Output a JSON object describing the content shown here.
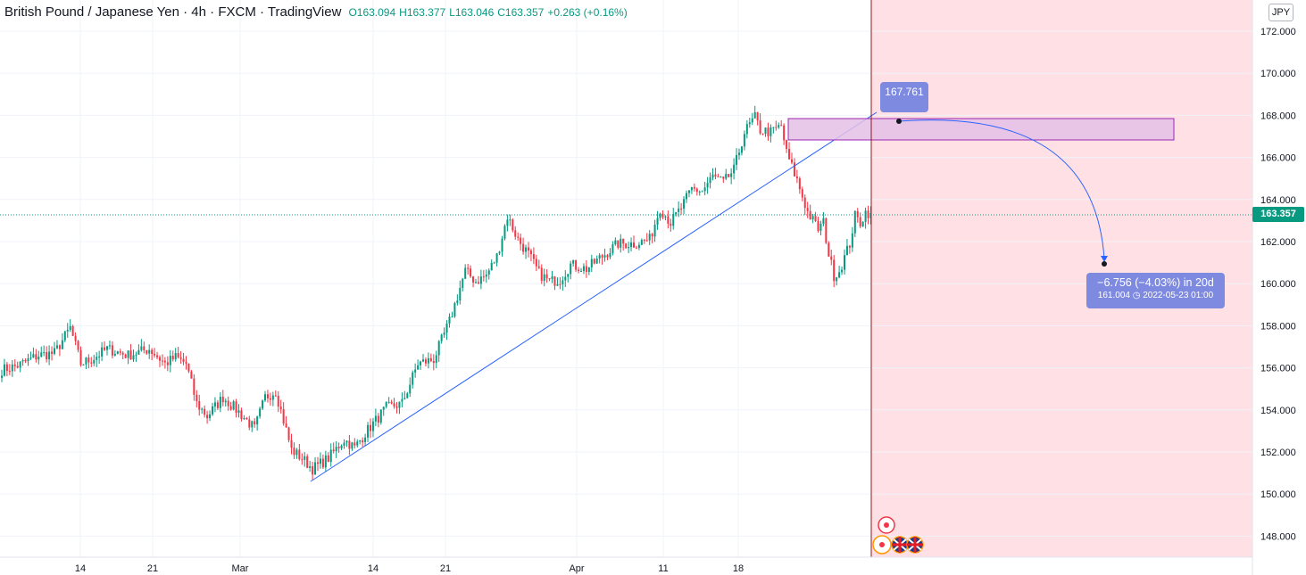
{
  "legend": {
    "title": "British Pound / Japanese Yen · 4h · FXCM · TradingView",
    "open": "O163.094",
    "high": "H163.377",
    "low": "L163.046",
    "close": "C163.357",
    "change": "+0.263 (+0.16%)"
  },
  "currency_button": "JPY",
  "current_price_label": "163.357",
  "annotations": {
    "target_price": "167.761",
    "projection_line1": "−6.756 (−4.03%) in 20d",
    "projection_line2": "161.004 ◷ 2022-05-23  01:00"
  },
  "colors": {
    "up": "#089981",
    "down": "#f23645",
    "trendline": "#2962ff",
    "zone_fill": "#e4bfe6",
    "zone_border": "#9c27b0",
    "future_shade": "#ffe0e4",
    "bubble": "#7e89e0"
  },
  "chart_data": {
    "type": "candlestick",
    "timeframe": "4h",
    "y_axis": {
      "min": 147,
      "max": 173,
      "ticks": [
        "172.000",
        "170.000",
        "168.000",
        "166.000",
        "164.000",
        "162.000",
        "160.000",
        "158.000",
        "156.000",
        "154.000",
        "152.000",
        "150.000",
        "148.000"
      ]
    },
    "x_axis": {
      "ticks": [
        "14",
        "21",
        "Mar",
        "14",
        "21",
        "Apr",
        "11",
        "18"
      ]
    },
    "current_price": 163.357,
    "trendline": {
      "from_price": 150.7,
      "to_price": 168.2
    },
    "resistance_zone": {
      "top": 167.9,
      "bottom": 166.8
    },
    "projection": {
      "from": 167.761,
      "to": 161.004,
      "change": -6.756,
      "percent": -4.03,
      "days": 20
    },
    "anchors": [
      {
        "i": 0,
        "p": 155.9
      },
      {
        "i": 6,
        "p": 156.1
      },
      {
        "i": 14,
        "p": 156.6
      },
      {
        "i": 20,
        "p": 156.7
      },
      {
        "i": 26,
        "p": 157.9
      },
      {
        "i": 30,
        "p": 156.2
      },
      {
        "i": 34,
        "p": 156.4
      },
      {
        "i": 40,
        "p": 156.9
      },
      {
        "i": 48,
        "p": 156.6
      },
      {
        "i": 56,
        "p": 156.9
      },
      {
        "i": 62,
        "p": 156.2
      },
      {
        "i": 66,
        "p": 156.5
      },
      {
        "i": 70,
        "p": 156.2
      },
      {
        "i": 74,
        "p": 154.3
      },
      {
        "i": 78,
        "p": 153.7
      },
      {
        "i": 84,
        "p": 154.6
      },
      {
        "i": 90,
        "p": 153.9
      },
      {
        "i": 96,
        "p": 153.1
      },
      {
        "i": 100,
        "p": 154.6
      },
      {
        "i": 104,
        "p": 154.9
      },
      {
        "i": 110,
        "p": 152.1
      },
      {
        "i": 114,
        "p": 151.7
      },
      {
        "i": 118,
        "p": 151.2
      },
      {
        "i": 124,
        "p": 151.7
      },
      {
        "i": 130,
        "p": 152.6
      },
      {
        "i": 134,
        "p": 152.2
      },
      {
        "i": 138,
        "p": 152.9
      },
      {
        "i": 146,
        "p": 154.1
      },
      {
        "i": 152,
        "p": 154.3
      },
      {
        "i": 158,
        "p": 156.2
      },
      {
        "i": 164,
        "p": 156.4
      },
      {
        "i": 170,
        "p": 158.2
      },
      {
        "i": 176,
        "p": 160.6
      },
      {
        "i": 180,
        "p": 160.1
      },
      {
        "i": 184,
        "p": 160.4
      },
      {
        "i": 188,
        "p": 161.3
      },
      {
        "i": 192,
        "p": 163.2
      },
      {
        "i": 196,
        "p": 162.1
      },
      {
        "i": 200,
        "p": 161.4
      },
      {
        "i": 204,
        "p": 160.5
      },
      {
        "i": 208,
        "p": 160.1
      },
      {
        "i": 212,
        "p": 160.2
      },
      {
        "i": 216,
        "p": 160.9
      },
      {
        "i": 222,
        "p": 160.7
      },
      {
        "i": 228,
        "p": 161.3
      },
      {
        "i": 234,
        "p": 161.9
      },
      {
        "i": 240,
        "p": 161.9
      },
      {
        "i": 246,
        "p": 162.1
      },
      {
        "i": 250,
        "p": 163.6
      },
      {
        "i": 254,
        "p": 162.9
      },
      {
        "i": 258,
        "p": 163.6
      },
      {
        "i": 262,
        "p": 164.5
      },
      {
        "i": 266,
        "p": 164.4
      },
      {
        "i": 270,
        "p": 165.1
      },
      {
        "i": 274,
        "p": 164.8
      },
      {
        "i": 278,
        "p": 165.4
      },
      {
        "i": 282,
        "p": 167.2
      },
      {
        "i": 286,
        "p": 167.9
      },
      {
        "i": 288,
        "p": 167.3
      },
      {
        "i": 292,
        "p": 167.2
      },
      {
        "i": 296,
        "p": 167.5
      },
      {
        "i": 298,
        "p": 166.2
      },
      {
        "i": 302,
        "p": 164.9
      },
      {
        "i": 306,
        "p": 163.4
      },
      {
        "i": 310,
        "p": 162.6
      },
      {
        "i": 312,
        "p": 162.9
      },
      {
        "i": 314,
        "p": 161.4
      },
      {
        "i": 316,
        "p": 160.4
      },
      {
        "i": 318,
        "p": 160.6
      },
      {
        "i": 322,
        "p": 161.9
      },
      {
        "i": 324,
        "p": 163.2
      },
      {
        "i": 326,
        "p": 162.9
      },
      {
        "i": 328,
        "p": 163.4
      },
      {
        "i": 330,
        "p": 163.357
      }
    ]
  }
}
